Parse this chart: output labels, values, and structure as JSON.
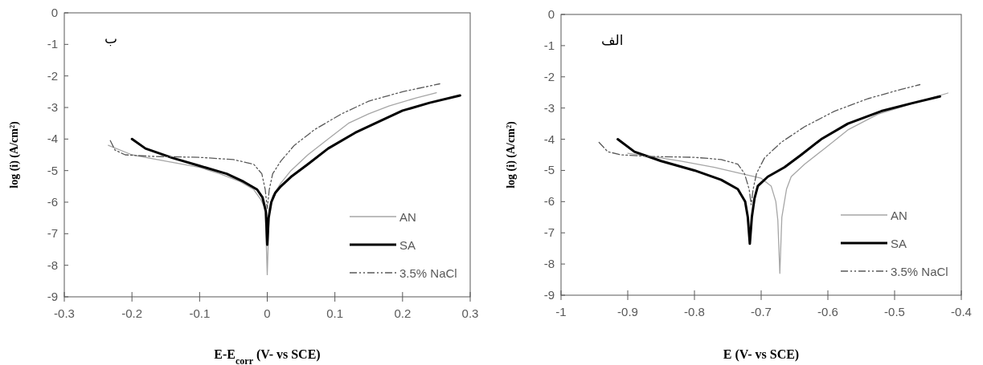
{
  "chart_data": [
    {
      "type": "line",
      "xlabel": "E-E$_{corr}$ (V- vs SCE)",
      "ylabel": "log (i) (A/cm²)",
      "annotations": [
        "ب"
      ],
      "xlim": [
        -0.3,
        0.3
      ],
      "xticks": [
        -0.3,
        -0.2,
        -0.1,
        0,
        0.1,
        0.2,
        0.3
      ],
      "ylim": [
        -9,
        0
      ],
      "yticks": [
        -9,
        -8,
        -7,
        -6,
        -5,
        -4,
        -3,
        -2,
        -1,
        0
      ],
      "grid": false,
      "legend": "bottom right",
      "series": [
        {
          "name": "AN",
          "color": "#a6a6a6",
          "line_style": "solid",
          "x": [
            -0.235,
            -0.2,
            -0.15,
            -0.1,
            -0.07,
            -0.04,
            -0.02,
            -0.01,
            -0.003,
            0,
            0.003,
            0.008,
            0.02,
            0.035,
            0.06,
            0.09,
            0.12,
            0.15,
            0.18,
            0.22,
            0.25
          ],
          "values": [
            -4.2,
            -4.5,
            -4.7,
            -4.9,
            -5.1,
            -5.35,
            -5.6,
            -5.9,
            -6.2,
            -8.3,
            -6.2,
            -5.8,
            -5.4,
            -5.0,
            -4.5,
            -4.0,
            -3.5,
            -3.2,
            -2.95,
            -2.7,
            -2.53
          ]
        },
        {
          "name": "SA",
          "color": "#000000",
          "line_style": "solid",
          "x": [
            -0.2,
            -0.18,
            -0.14,
            -0.1,
            -0.06,
            -0.035,
            -0.015,
            -0.007,
            -0.002,
            0,
            0.002,
            0.006,
            0.012,
            0.02,
            0.035,
            0.06,
            0.09,
            0.13,
            0.17,
            0.2,
            0.24,
            0.285
          ],
          "values": [
            -4.0,
            -4.3,
            -4.6,
            -4.85,
            -5.1,
            -5.35,
            -5.6,
            -5.85,
            -6.3,
            -7.35,
            -6.5,
            -6.0,
            -5.7,
            -5.5,
            -5.2,
            -4.8,
            -4.3,
            -3.8,
            -3.4,
            -3.1,
            -2.85,
            -2.62
          ]
        },
        {
          "name": "3.5% NaCl",
          "color": "#595959",
          "line_style": "dashed",
          "x": [
            -0.232,
            -0.225,
            -0.21,
            -0.17,
            -0.1,
            -0.05,
            -0.02,
            -0.008,
            -0.003,
            0,
            0.003,
            0.008,
            0.02,
            0.04,
            0.07,
            0.11,
            0.15,
            0.2,
            0.255
          ],
          "values": [
            -4.05,
            -4.35,
            -4.5,
            -4.55,
            -4.58,
            -4.65,
            -4.8,
            -5.1,
            -5.6,
            -6.2,
            -5.6,
            -5.1,
            -4.7,
            -4.2,
            -3.7,
            -3.2,
            -2.8,
            -2.5,
            -2.25
          ]
        }
      ]
    },
    {
      "type": "line",
      "xlabel": "E (V- vs SCE)",
      "ylabel": "log (i) (A/cm²)",
      "annotations": [
        "الف"
      ],
      "xlim": [
        -1,
        -0.4
      ],
      "xticks": [
        -1,
        -0.9,
        -0.8,
        -0.7,
        -0.6,
        -0.5,
        -0.4
      ],
      "ylim": [
        -9,
        0
      ],
      "yticks": [
        -9,
        -8,
        -7,
        -6,
        -5,
        -4,
        -3,
        -2,
        -1,
        0
      ],
      "grid": false,
      "legend": "bottom right",
      "series": [
        {
          "name": "AN",
          "color": "#a6a6a6",
          "line_style": "solid",
          "x": [
            -0.9,
            -0.85,
            -0.82,
            -0.77,
            -0.73,
            -0.7,
            -0.685,
            -0.678,
            -0.675,
            -0.672,
            -0.669,
            -0.662,
            -0.655,
            -0.635,
            -0.605,
            -0.57,
            -0.525,
            -0.48,
            -0.42
          ],
          "values": [
            -4.45,
            -4.6,
            -4.7,
            -4.9,
            -5.1,
            -5.25,
            -5.5,
            -6.0,
            -6.6,
            -8.3,
            -6.5,
            -5.6,
            -5.2,
            -4.8,
            -4.3,
            -3.7,
            -3.2,
            -2.9,
            -2.52
          ]
        },
        {
          "name": "SA",
          "color": "#000000",
          "line_style": "solid",
          "x": [
            -0.915,
            -0.89,
            -0.85,
            -0.8,
            -0.76,
            -0.735,
            -0.724,
            -0.72,
            -0.717,
            -0.714,
            -0.71,
            -0.705,
            -0.69,
            -0.665,
            -0.64,
            -0.61,
            -0.57,
            -0.52,
            -0.475,
            -0.432
          ],
          "values": [
            -4.0,
            -4.4,
            -4.7,
            -5.0,
            -5.3,
            -5.6,
            -6.0,
            -6.5,
            -7.35,
            -6.5,
            -5.9,
            -5.5,
            -5.2,
            -4.9,
            -4.5,
            -4.0,
            -3.5,
            -3.1,
            -2.85,
            -2.63
          ]
        },
        {
          "name": "3.5% NaCl",
          "color": "#595959",
          "line_style": "dashed",
          "x": [
            -0.943,
            -0.93,
            -0.91,
            -0.87,
            -0.8,
            -0.76,
            -0.735,
            -0.725,
            -0.718,
            -0.715,
            -0.712,
            -0.707,
            -0.695,
            -0.67,
            -0.635,
            -0.59,
            -0.54,
            -0.49,
            -0.462
          ],
          "values": [
            -4.1,
            -4.4,
            -4.5,
            -4.55,
            -4.58,
            -4.65,
            -4.8,
            -5.1,
            -5.6,
            -6.1,
            -5.6,
            -5.1,
            -4.6,
            -4.1,
            -3.6,
            -3.1,
            -2.7,
            -2.4,
            -2.25
          ]
        }
      ]
    }
  ]
}
